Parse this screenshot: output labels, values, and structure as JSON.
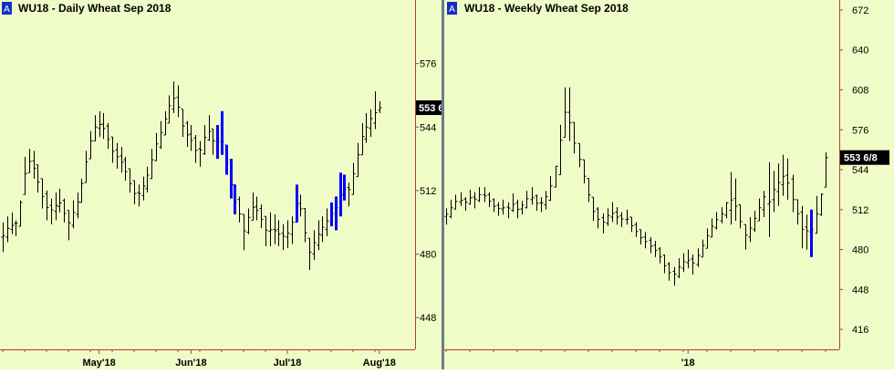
{
  "colors": {
    "plot_bg": "#f0fcc8",
    "bar": "#000000",
    "highlight_bar": "#0000ff",
    "axis_line": "#b3402a",
    "price_tag_bg": "#000000",
    "price_tag_text": "#ffffff",
    "marker_bg": "#1530c0",
    "separator": "#6b7b8c"
  },
  "chart_data": [
    {
      "id": "daily",
      "type": "ohlc",
      "marker": "A",
      "title": "WU18 - Daily  Wheat Sep 2018",
      "y_ticks": [
        "448",
        "480",
        "512",
        "544",
        "576"
      ],
      "ylim": [
        432,
        608
      ],
      "x_labels": [
        "May'18",
        "Jun'18",
        "Jul'18",
        "Aug'18"
      ],
      "x_label_index": [
        22,
        43,
        65,
        86
      ],
      "last_price": "553 6",
      "last_value": 553.75,
      "bar_count": 87,
      "blue_bars": [
        49,
        50,
        51,
        52,
        53,
        67,
        75,
        76,
        77,
        78
      ],
      "bars": [
        {
          "h": 496,
          "l": 481
        },
        {
          "h": 499,
          "l": 486
        },
        {
          "h": 501,
          "l": 490
        },
        {
          "h": 497,
          "l": 489
        },
        {
          "h": 507,
          "l": 494
        },
        {
          "h": 529,
          "l": 510
        },
        {
          "h": 533,
          "l": 521
        },
        {
          "h": 532,
          "l": 518
        },
        {
          "h": 525,
          "l": 511
        },
        {
          "h": 518,
          "l": 503
        },
        {
          "h": 512,
          "l": 497
        },
        {
          "h": 508,
          "l": 495
        },
        {
          "h": 511,
          "l": 497
        },
        {
          "h": 513,
          "l": 501
        },
        {
          "h": 508,
          "l": 496
        },
        {
          "h": 502,
          "l": 487
        },
        {
          "h": 507,
          "l": 493
        },
        {
          "h": 511,
          "l": 498
        },
        {
          "h": 518,
          "l": 506
        },
        {
          "h": 532,
          "l": 516
        },
        {
          "h": 542,
          "l": 528
        },
        {
          "h": 550,
          "l": 537
        },
        {
          "h": 552,
          "l": 539
        },
        {
          "h": 551,
          "l": 538
        },
        {
          "h": 546,
          "l": 533
        },
        {
          "h": 539,
          "l": 526
        },
        {
          "h": 536,
          "l": 523
        },
        {
          "h": 534,
          "l": 521
        },
        {
          "h": 529,
          "l": 517
        },
        {
          "h": 523,
          "l": 511
        },
        {
          "h": 517,
          "l": 505
        },
        {
          "h": 515,
          "l": 504
        },
        {
          "h": 519,
          "l": 507
        },
        {
          "h": 524,
          "l": 511
        },
        {
          "h": 533,
          "l": 518
        },
        {
          "h": 541,
          "l": 527
        },
        {
          "h": 547,
          "l": 533
        },
        {
          "h": 552,
          "l": 540
        },
        {
          "h": 560,
          "l": 546
        },
        {
          "h": 567,
          "l": 551
        },
        {
          "h": 565,
          "l": 549
        },
        {
          "h": 553,
          "l": 539
        },
        {
          "h": 547,
          "l": 534
        },
        {
          "h": 545,
          "l": 532
        },
        {
          "h": 540,
          "l": 526
        },
        {
          "h": 537,
          "l": 524
        },
        {
          "h": 545,
          "l": 530
        },
        {
          "h": 550,
          "l": 537
        },
        {
          "h": 543,
          "l": 530
        },
        {
          "h": 545,
          "l": 528
        },
        {
          "h": 552,
          "l": 530
        },
        {
          "h": 535,
          "l": 520
        },
        {
          "h": 528,
          "l": 508
        },
        {
          "h": 515,
          "l": 500
        },
        {
          "h": 509,
          "l": 496
        },
        {
          "h": 500,
          "l": 482
        },
        {
          "h": 503,
          "l": 490
        },
        {
          "h": 511,
          "l": 497
        },
        {
          "h": 509,
          "l": 497
        },
        {
          "h": 505,
          "l": 493
        },
        {
          "h": 499,
          "l": 484
        },
        {
          "h": 501,
          "l": 484
        },
        {
          "h": 500,
          "l": 485
        },
        {
          "h": 497,
          "l": 484
        },
        {
          "h": 495,
          "l": 482
        },
        {
          "h": 497,
          "l": 483
        },
        {
          "h": 499,
          "l": 485
        },
        {
          "h": 515,
          "l": 496
        },
        {
          "h": 510,
          "l": 499
        },
        {
          "h": 503,
          "l": 486
        },
        {
          "h": 488,
          "l": 472
        },
        {
          "h": 492,
          "l": 477
        },
        {
          "h": 497,
          "l": 482
        },
        {
          "h": 499,
          "l": 486
        },
        {
          "h": 503,
          "l": 489
        },
        {
          "h": 506,
          "l": 494
        },
        {
          "h": 509,
          "l": 492
        },
        {
          "h": 521,
          "l": 499
        },
        {
          "h": 520,
          "l": 507
        },
        {
          "h": 516,
          "l": 504
        },
        {
          "h": 526,
          "l": 510
        },
        {
          "h": 536,
          "l": 519
        },
        {
          "h": 546,
          "l": 530
        },
        {
          "h": 551,
          "l": 536
        },
        {
          "h": 553,
          "l": 539
        },
        {
          "h": 562,
          "l": 543
        },
        {
          "h": 557,
          "l": 551
        }
      ]
    },
    {
      "id": "weekly",
      "type": "ohlc",
      "marker": "A",
      "title": "WU18 - Weekly  Wheat Sep 2018",
      "y_ticks": [
        "416",
        "448",
        "480",
        "512",
        "544",
        "576",
        "608",
        "640",
        "672"
      ],
      "ylim": [
        400,
        680
      ],
      "x_labels": [
        "'18"
      ],
      "x_label_index": [
        51
      ],
      "last_price": "553 6/8",
      "last_value": 553.75,
      "bar_count": 81,
      "blue_bars": [
        77
      ],
      "bars": [
        {
          "h": 513,
          "l": 500
        },
        {
          "h": 520,
          "l": 505
        },
        {
          "h": 524,
          "l": 512
        },
        {
          "h": 526,
          "l": 515
        },
        {
          "h": 522,
          "l": 511
        },
        {
          "h": 528,
          "l": 516
        },
        {
          "h": 526,
          "l": 513
        },
        {
          "h": 530,
          "l": 518
        },
        {
          "h": 530,
          "l": 518
        },
        {
          "h": 526,
          "l": 514
        },
        {
          "h": 521,
          "l": 510
        },
        {
          "h": 518,
          "l": 507
        },
        {
          "h": 520,
          "l": 508
        },
        {
          "h": 518,
          "l": 505
        },
        {
          "h": 525,
          "l": 510
        },
        {
          "h": 520,
          "l": 505
        },
        {
          "h": 519,
          "l": 508
        },
        {
          "h": 527,
          "l": 513
        },
        {
          "h": 530,
          "l": 516
        },
        {
          "h": 524,
          "l": 511
        },
        {
          "h": 522,
          "l": 510
        },
        {
          "h": 527,
          "l": 512
        },
        {
          "h": 539,
          "l": 519
        },
        {
          "h": 547,
          "l": 530
        },
        {
          "h": 580,
          "l": 540
        },
        {
          "h": 610,
          "l": 570
        },
        {
          "h": 610,
          "l": 567
        },
        {
          "h": 582,
          "l": 557
        },
        {
          "h": 565,
          "l": 546
        },
        {
          "h": 552,
          "l": 533
        },
        {
          "h": 537,
          "l": 518
        },
        {
          "h": 522,
          "l": 503
        },
        {
          "h": 514,
          "l": 497
        },
        {
          "h": 509,
          "l": 493
        },
        {
          "h": 513,
          "l": 499
        },
        {
          "h": 518,
          "l": 502
        },
        {
          "h": 514,
          "l": 500
        },
        {
          "h": 510,
          "l": 498
        },
        {
          "h": 512,
          "l": 500
        },
        {
          "h": 506,
          "l": 494
        },
        {
          "h": 502,
          "l": 490
        },
        {
          "h": 496,
          "l": 484
        },
        {
          "h": 494,
          "l": 481
        },
        {
          "h": 490,
          "l": 477
        },
        {
          "h": 487,
          "l": 474
        },
        {
          "h": 482,
          "l": 469
        },
        {
          "h": 476,
          "l": 461
        },
        {
          "h": 470,
          "l": 455
        },
        {
          "h": 466,
          "l": 451
        },
        {
          "h": 473,
          "l": 457
        },
        {
          "h": 477,
          "l": 462
        },
        {
          "h": 480,
          "l": 465
        },
        {
          "h": 476,
          "l": 460
        },
        {
          "h": 481,
          "l": 466
        },
        {
          "h": 488,
          "l": 474
        },
        {
          "h": 497,
          "l": 481
        },
        {
          "h": 505,
          "l": 490
        },
        {
          "h": 510,
          "l": 496
        },
        {
          "h": 514,
          "l": 501
        },
        {
          "h": 518,
          "l": 505
        },
        {
          "h": 542,
          "l": 500
        },
        {
          "h": 537,
          "l": 503
        },
        {
          "h": 516,
          "l": 497
        },
        {
          "h": 500,
          "l": 480
        },
        {
          "h": 506,
          "l": 486
        },
        {
          "h": 511,
          "l": 494
        },
        {
          "h": 521,
          "l": 503
        },
        {
          "h": 527,
          "l": 506
        },
        {
          "h": 550,
          "l": 490
        },
        {
          "h": 543,
          "l": 510
        },
        {
          "h": 549,
          "l": 515
        },
        {
          "h": 556,
          "l": 523
        },
        {
          "h": 553,
          "l": 520
        },
        {
          "h": 540,
          "l": 510
        },
        {
          "h": 520,
          "l": 500
        },
        {
          "h": 515,
          "l": 481
        },
        {
          "h": 508,
          "l": 480
        },
        {
          "h": 512,
          "l": 474
        },
        {
          "h": 523,
          "l": 493
        },
        {
          "h": 525,
          "l": 507
        },
        {
          "h": 558,
          "l": 530
        }
      ]
    }
  ]
}
